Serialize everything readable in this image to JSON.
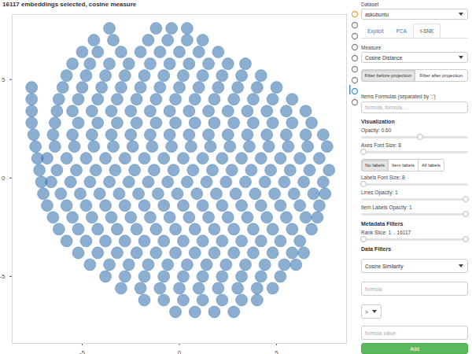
{
  "chart_data": {
    "type": "scatter",
    "title": "16117 embeddings selected, cosine measure",
    "color": "#3f78b0",
    "xlim": [
      -8.6,
      8.6
    ],
    "ylim": [
      -8.4,
      8.3
    ],
    "xticks": [
      -5,
      0,
      5
    ],
    "yticks": [
      -5,
      0,
      5
    ],
    "grid": false,
    "points": [
      [
        -1.2,
        7.6
      ],
      [
        -0.4,
        7.6
      ],
      [
        0.4,
        7.6
      ],
      [
        -3.6,
        7.6
      ],
      [
        -4.4,
        7.0
      ],
      [
        -3.4,
        7.0
      ],
      [
        -1.6,
        7.0
      ],
      [
        -0.6,
        7.0
      ],
      [
        0.4,
        7.0
      ],
      [
        1.2,
        7.0
      ],
      [
        -5.0,
        6.4
      ],
      [
        -4.2,
        6.4
      ],
      [
        -3.0,
        6.4
      ],
      [
        -2.0,
        6.4
      ],
      [
        -1.0,
        6.4
      ],
      [
        0.0,
        6.4
      ],
      [
        1.0,
        6.4
      ],
      [
        2.0,
        6.4
      ],
      [
        -5.5,
        5.8
      ],
      [
        -4.6,
        5.8
      ],
      [
        -3.6,
        5.8
      ],
      [
        -2.6,
        5.8
      ],
      [
        -1.5,
        5.8
      ],
      [
        -0.5,
        5.8
      ],
      [
        0.5,
        5.8
      ],
      [
        1.5,
        5.8
      ],
      [
        2.5,
        5.8
      ],
      [
        3.4,
        5.8
      ],
      [
        -5.8,
        5.2
      ],
      [
        -4.8,
        5.2
      ],
      [
        -3.8,
        5.2
      ],
      [
        -2.8,
        5.2
      ],
      [
        -1.8,
        5.2
      ],
      [
        -0.8,
        5.2
      ],
      [
        0.2,
        5.2
      ],
      [
        1.2,
        5.2
      ],
      [
        2.2,
        5.2
      ],
      [
        3.2,
        5.2
      ],
      [
        4.2,
        5.2
      ],
      [
        -7.6,
        4.6
      ],
      [
        -6.0,
        4.6
      ],
      [
        -5.0,
        4.6
      ],
      [
        -4.0,
        4.6
      ],
      [
        -3.0,
        4.6
      ],
      [
        -2.0,
        4.6
      ],
      [
        -1.0,
        4.6
      ],
      [
        0.0,
        4.6
      ],
      [
        1.0,
        4.6
      ],
      [
        2.0,
        4.6
      ],
      [
        3.0,
        4.6
      ],
      [
        4.0,
        4.6
      ],
      [
        5.0,
        4.6
      ],
      [
        -7.6,
        4.0
      ],
      [
        -6.2,
        4.0
      ],
      [
        -5.2,
        4.0
      ],
      [
        -4.2,
        4.0
      ],
      [
        -3.2,
        4.0
      ],
      [
        -2.2,
        4.0
      ],
      [
        -1.2,
        4.0
      ],
      [
        -0.2,
        4.0
      ],
      [
        0.8,
        4.0
      ],
      [
        1.8,
        4.0
      ],
      [
        2.8,
        4.0
      ],
      [
        3.8,
        4.0
      ],
      [
        4.8,
        4.0
      ],
      [
        5.8,
        4.0
      ],
      [
        -7.6,
        3.4
      ],
      [
        -6.3,
        3.4
      ],
      [
        -5.5,
        3.4
      ],
      [
        -4.5,
        3.4
      ],
      [
        -3.5,
        3.4
      ],
      [
        -2.5,
        3.4
      ],
      [
        -1.5,
        3.4
      ],
      [
        -0.5,
        3.4
      ],
      [
        0.5,
        3.4
      ],
      [
        1.5,
        3.4
      ],
      [
        2.5,
        3.4
      ],
      [
        3.5,
        3.4
      ],
      [
        4.5,
        3.4
      ],
      [
        5.5,
        3.4
      ],
      [
        6.5,
        3.4
      ],
      [
        -7.6,
        2.8
      ],
      [
        -6.4,
        2.8
      ],
      [
        -5.2,
        2.8
      ],
      [
        -4.2,
        2.8
      ],
      [
        -3.2,
        2.8
      ],
      [
        -2.2,
        2.8
      ],
      [
        -1.2,
        2.8
      ],
      [
        -0.2,
        2.8
      ],
      [
        0.8,
        2.8
      ],
      [
        1.8,
        2.8
      ],
      [
        2.8,
        2.8
      ],
      [
        3.8,
        2.8
      ],
      [
        4.8,
        2.8
      ],
      [
        5.8,
        2.8
      ],
      [
        6.8,
        2.8
      ],
      [
        -7.5,
        2.2
      ],
      [
        -6.5,
        2.2
      ],
      [
        -5.5,
        2.2
      ],
      [
        -4.5,
        2.2
      ],
      [
        -3.5,
        2.2
      ],
      [
        -2.5,
        2.2
      ],
      [
        -1.5,
        2.2
      ],
      [
        -0.5,
        2.2
      ],
      [
        0.5,
        2.2
      ],
      [
        1.5,
        2.2
      ],
      [
        2.5,
        2.2
      ],
      [
        3.5,
        2.2
      ],
      [
        4.5,
        2.2
      ],
      [
        5.5,
        2.2
      ],
      [
        6.5,
        2.2
      ],
      [
        7.4,
        2.2
      ],
      [
        -7.4,
        1.6
      ],
      [
        -6.4,
        1.6
      ],
      [
        -5.4,
        1.6
      ],
      [
        -4.4,
        1.6
      ],
      [
        -3.4,
        1.6
      ],
      [
        -2.4,
        1.6
      ],
      [
        -1.4,
        1.6
      ],
      [
        -0.4,
        1.6
      ],
      [
        0.6,
        1.6
      ],
      [
        1.6,
        1.6
      ],
      [
        2.6,
        1.6
      ],
      [
        3.6,
        1.6
      ],
      [
        4.6,
        1.6
      ],
      [
        5.6,
        1.6
      ],
      [
        6.6,
        1.6
      ],
      [
        7.6,
        1.6
      ],
      [
        -7.3,
        1.0
      ],
      [
        -6.8,
        1.0
      ],
      [
        -5.8,
        1.0
      ],
      [
        -4.8,
        1.0
      ],
      [
        -3.8,
        1.0
      ],
      [
        -2.8,
        1.0
      ],
      [
        -1.8,
        1.0
      ],
      [
        -0.8,
        1.0
      ],
      [
        0.2,
        1.0
      ],
      [
        1.2,
        1.0
      ],
      [
        2.2,
        1.0
      ],
      [
        3.2,
        1.0
      ],
      [
        4.2,
        1.0
      ],
      [
        5.2,
        1.0
      ],
      [
        6.2,
        1.0
      ],
      [
        7.2,
        1.0
      ],
      [
        -7.2,
        0.4
      ],
      [
        -6.3,
        0.4
      ],
      [
        -5.3,
        0.4
      ],
      [
        -4.3,
        0.4
      ],
      [
        -3.3,
        0.4
      ],
      [
        -2.3,
        0.4
      ],
      [
        -1.3,
        0.4
      ],
      [
        -0.3,
        0.4
      ],
      [
        0.7,
        0.4
      ],
      [
        1.7,
        0.4
      ],
      [
        2.7,
        0.4
      ],
      [
        3.7,
        0.4
      ],
      [
        4.7,
        0.4
      ],
      [
        5.7,
        0.4
      ],
      [
        6.7,
        0.4
      ],
      [
        7.7,
        0.4
      ],
      [
        -7.1,
        -0.2
      ],
      [
        -6.6,
        -0.2
      ],
      [
        -5.6,
        -0.2
      ],
      [
        -4.6,
        -0.2
      ],
      [
        -3.6,
        -0.2
      ],
      [
        -2.6,
        -0.2
      ],
      [
        -1.6,
        -0.2
      ],
      [
        -0.6,
        -0.2
      ],
      [
        0.4,
        -0.2
      ],
      [
        1.4,
        -0.2
      ],
      [
        2.4,
        -0.2
      ],
      [
        3.4,
        -0.2
      ],
      [
        4.4,
        -0.2
      ],
      [
        5.4,
        -0.2
      ],
      [
        6.4,
        -0.2
      ],
      [
        7.4,
        -0.2
      ],
      [
        -7.0,
        -0.8
      ],
      [
        -6.1,
        -0.8
      ],
      [
        -5.1,
        -0.8
      ],
      [
        -4.1,
        -0.8
      ],
      [
        -3.1,
        -0.8
      ],
      [
        -2.1,
        -0.8
      ],
      [
        -1.1,
        -0.8
      ],
      [
        -0.1,
        -0.8
      ],
      [
        0.9,
        -0.8
      ],
      [
        1.9,
        -0.8
      ],
      [
        2.9,
        -0.8
      ],
      [
        3.9,
        -0.8
      ],
      [
        4.9,
        -0.8
      ],
      [
        5.9,
        -0.8
      ],
      [
        6.9,
        -0.8
      ],
      [
        7.5,
        -0.8
      ],
      [
        -6.8,
        -1.4
      ],
      [
        -5.8,
        -1.4
      ],
      [
        -4.8,
        -1.4
      ],
      [
        -3.8,
        -1.4
      ],
      [
        -2.8,
        -1.4
      ],
      [
        -1.8,
        -1.4
      ],
      [
        -0.8,
        -1.4
      ],
      [
        0.2,
        -1.4
      ],
      [
        1.2,
        -1.4
      ],
      [
        2.2,
        -1.4
      ],
      [
        3.2,
        -1.4
      ],
      [
        4.2,
        -1.4
      ],
      [
        5.2,
        -1.4
      ],
      [
        6.2,
        -1.4
      ],
      [
        7.2,
        -1.4
      ],
      [
        -6.5,
        -2.0
      ],
      [
        -5.5,
        -2.0
      ],
      [
        -4.5,
        -2.0
      ],
      [
        -3.5,
        -2.0
      ],
      [
        -2.5,
        -2.0
      ],
      [
        -1.5,
        -2.0
      ],
      [
        -0.5,
        -2.0
      ],
      [
        0.5,
        -2.0
      ],
      [
        1.5,
        -2.0
      ],
      [
        2.5,
        -2.0
      ],
      [
        3.5,
        -2.0
      ],
      [
        4.5,
        -2.0
      ],
      [
        5.5,
        -2.0
      ],
      [
        6.5,
        -2.0
      ],
      [
        7.1,
        -2.0
      ],
      [
        -6.2,
        -2.6
      ],
      [
        -5.2,
        -2.6
      ],
      [
        -4.2,
        -2.6
      ],
      [
        -3.2,
        -2.6
      ],
      [
        -2.2,
        -2.6
      ],
      [
        -1.2,
        -2.6
      ],
      [
        -0.2,
        -2.6
      ],
      [
        0.8,
        -2.6
      ],
      [
        1.8,
        -2.6
      ],
      [
        2.8,
        -2.6
      ],
      [
        3.8,
        -2.6
      ],
      [
        4.8,
        -2.6
      ],
      [
        5.8,
        -2.6
      ],
      [
        6.8,
        -2.6
      ],
      [
        -5.8,
        -3.2
      ],
      [
        -4.8,
        -3.2
      ],
      [
        -3.8,
        -3.2
      ],
      [
        -2.8,
        -3.2
      ],
      [
        -1.8,
        -3.2
      ],
      [
        -0.8,
        -3.2
      ],
      [
        0.2,
        -3.2
      ],
      [
        1.2,
        -3.2
      ],
      [
        2.2,
        -3.2
      ],
      [
        3.2,
        -3.2
      ],
      [
        4.2,
        -3.2
      ],
      [
        5.2,
        -3.2
      ],
      [
        6.2,
        -3.2
      ],
      [
        -5.2,
        -3.8
      ],
      [
        -4.2,
        -3.8
      ],
      [
        -3.2,
        -3.8
      ],
      [
        -2.2,
        -3.8
      ],
      [
        -1.2,
        -3.8
      ],
      [
        -0.2,
        -3.8
      ],
      [
        0.8,
        -3.8
      ],
      [
        1.8,
        -3.8
      ],
      [
        2.8,
        -3.8
      ],
      [
        3.8,
        -3.8
      ],
      [
        4.8,
        -3.8
      ],
      [
        5.8,
        -3.8
      ],
      [
        6.4,
        -3.8
      ],
      [
        -4.6,
        -4.4
      ],
      [
        -3.6,
        -4.4
      ],
      [
        -2.6,
        -4.4
      ],
      [
        -1.6,
        -4.4
      ],
      [
        -0.6,
        -4.4
      ],
      [
        0.4,
        -4.4
      ],
      [
        1.4,
        -4.4
      ],
      [
        2.4,
        -4.4
      ],
      [
        3.4,
        -4.4
      ],
      [
        4.4,
        -4.4
      ],
      [
        5.4,
        -4.4
      ],
      [
        6.0,
        -4.4
      ],
      [
        -3.8,
        -5.0
      ],
      [
        -2.8,
        -5.0
      ],
      [
        -1.8,
        -5.0
      ],
      [
        -0.8,
        -5.0
      ],
      [
        0.2,
        -5.0
      ],
      [
        1.2,
        -5.0
      ],
      [
        2.2,
        -5.0
      ],
      [
        3.2,
        -5.0
      ],
      [
        4.2,
        -5.0
      ],
      [
        5.2,
        -5.0
      ],
      [
        -3.0,
        -5.6
      ],
      [
        -2.0,
        -5.6
      ],
      [
        -1.0,
        -5.6
      ],
      [
        0.0,
        -5.6
      ],
      [
        1.0,
        -5.6
      ],
      [
        2.0,
        -5.6
      ],
      [
        3.0,
        -5.6
      ],
      [
        4.0,
        -5.6
      ],
      [
        4.8,
        -5.6
      ],
      [
        -1.8,
        -6.2
      ],
      [
        -0.8,
        -6.2
      ],
      [
        0.2,
        -6.2
      ],
      [
        1.2,
        -6.2
      ],
      [
        2.2,
        -6.2
      ],
      [
        3.2,
        -6.2
      ],
      [
        4.0,
        -6.2
      ],
      [
        -0.2,
        -6.8
      ],
      [
        0.8,
        -6.8
      ],
      [
        1.8,
        -6.8
      ],
      [
        2.8,
        -6.8
      ]
    ]
  },
  "panel": [
    {
      "label": "Dataset"
    },
    {
      "select": "askubuntu"
    },
    {
      "tabs": [
        "Explicit",
        "PCA",
        "t-SNE"
      ],
      "active": "t-SNE"
    },
    {
      "label": "Measure"
    },
    {
      "select": "Cosine Distance"
    },
    {
      "buttons": [
        "Filter before projection",
        "Filter after projection"
      ],
      "active": "Filter before projection"
    },
    {
      "label": "Items Formulas (separated by ';')"
    },
    {
      "input": "formula, formula, ..."
    },
    {
      "heading": "Visualization"
    },
    {
      "label": "Opacity: 0.60",
      "slider": true
    },
    {
      "label": "Axes Font Size: 8",
      "slider": true
    },
    {
      "buttons": [
        "No labels",
        "Item labels",
        "All labels"
      ],
      "active": "No labels"
    },
    {
      "label": "Labels Font Size: 8",
      "slider": true
    },
    {
      "label": "Lines Opacity: 1",
      "slider": true
    },
    {
      "label": "Item Labels Opacity: 1",
      "slider": true
    },
    {
      "heading": "Metadata Filters"
    },
    {
      "label": "Rank Slice: 1 .. 16117",
      "slider": true
    },
    {
      "heading": "Data Filters"
    },
    {
      "select": "Cosine Similarity"
    },
    {
      "input": "formula"
    },
    {
      "select": ">"
    },
    {
      "input": "formula value"
    },
    {
      "button": "Add"
    }
  ]
}
